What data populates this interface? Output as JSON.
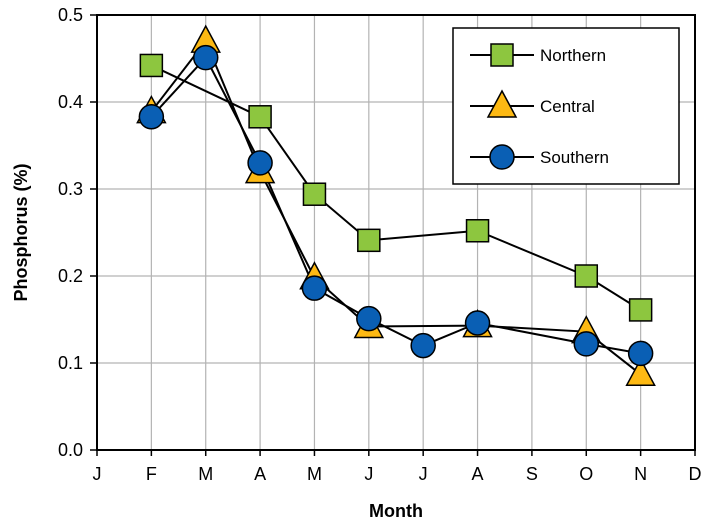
{
  "chart_data": {
    "type": "line",
    "xlabel": "Month",
    "ylabel": "Phosphorus (%)",
    "x_tick_labels": [
      "J",
      "F",
      "M",
      "A",
      "M",
      "J",
      "J",
      "A",
      "S",
      "O",
      "N",
      "D"
    ],
    "y_tick_labels": [
      "0.0",
      "0.1",
      "0.2",
      "0.3",
      "0.4",
      "0.5"
    ],
    "ylim": [
      0.0,
      0.5
    ],
    "grid": true,
    "legend_position": "top-right",
    "series": [
      {
        "name": "Northern",
        "marker": "square",
        "color": "#8dc63f",
        "points": [
          {
            "month": "F",
            "value": 0.442
          },
          {
            "month": "A",
            "value": 0.383
          },
          {
            "month": "M",
            "value": 0.294
          },
          {
            "month": "J",
            "value": 0.241
          },
          {
            "month": "A",
            "value": 0.252
          },
          {
            "month": "O",
            "value": 0.2
          },
          {
            "month": "N",
            "value": 0.161
          }
        ]
      },
      {
        "name": "Central",
        "marker": "triangle",
        "color": "#fdb913",
        "points": [
          {
            "month": "F",
            "value": 0.389
          },
          {
            "month": "M",
            "value": 0.47
          },
          {
            "month": "A",
            "value": 0.32
          },
          {
            "month": "M",
            "value": 0.198
          },
          {
            "month": "J",
            "value": 0.142
          },
          {
            "month": "A",
            "value": 0.143
          },
          {
            "month": "O",
            "value": 0.136
          },
          {
            "month": "N",
            "value": 0.087
          }
        ]
      },
      {
        "name": "Southern",
        "marker": "circle",
        "color": "#0a5fb4",
        "points": [
          {
            "month": "F",
            "value": 0.383
          },
          {
            "month": "M",
            "value": 0.451
          },
          {
            "month": "A",
            "value": 0.33
          },
          {
            "month": "M",
            "value": 0.186
          },
          {
            "month": "J",
            "value": 0.151
          },
          {
            "month": "J",
            "value": 0.12
          },
          {
            "month": "A",
            "value": 0.146
          },
          {
            "month": "O",
            "value": 0.122
          },
          {
            "month": "N",
            "value": 0.111
          }
        ]
      }
    ]
  }
}
